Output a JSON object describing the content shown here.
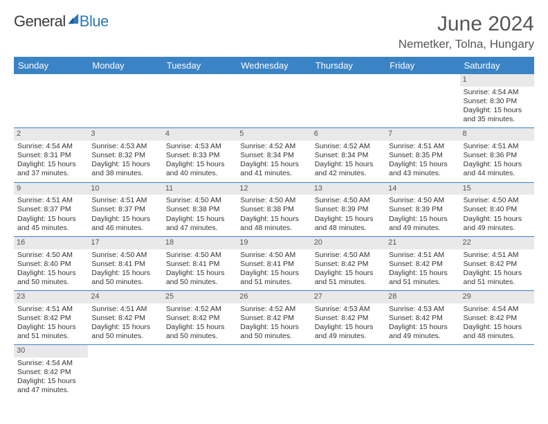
{
  "brand": {
    "general": "General",
    "blue": "Blue"
  },
  "header": {
    "month_title": "June 2024",
    "location": "Nemetker, Tolna, Hungary"
  },
  "colors": {
    "header_bg": "#3a83c5",
    "header_text": "#ffffff",
    "daynum_bg": "#e9e9e9",
    "text": "#333333",
    "brand_blue": "#2e78bd",
    "cell_border": "#3a83c5"
  },
  "weekdays": [
    "Sunday",
    "Monday",
    "Tuesday",
    "Wednesday",
    "Thursday",
    "Friday",
    "Saturday"
  ],
  "leading_blanks": 6,
  "days": [
    {
      "n": "1",
      "sunrise": "Sunrise: 4:54 AM",
      "sunset": "Sunset: 8:30 PM",
      "d1": "Daylight: 15 hours",
      "d2": "and 35 minutes."
    },
    {
      "n": "2",
      "sunrise": "Sunrise: 4:54 AM",
      "sunset": "Sunset: 8:31 PM",
      "d1": "Daylight: 15 hours",
      "d2": "and 37 minutes."
    },
    {
      "n": "3",
      "sunrise": "Sunrise: 4:53 AM",
      "sunset": "Sunset: 8:32 PM",
      "d1": "Daylight: 15 hours",
      "d2": "and 38 minutes."
    },
    {
      "n": "4",
      "sunrise": "Sunrise: 4:53 AM",
      "sunset": "Sunset: 8:33 PM",
      "d1": "Daylight: 15 hours",
      "d2": "and 40 minutes."
    },
    {
      "n": "5",
      "sunrise": "Sunrise: 4:52 AM",
      "sunset": "Sunset: 8:34 PM",
      "d1": "Daylight: 15 hours",
      "d2": "and 41 minutes."
    },
    {
      "n": "6",
      "sunrise": "Sunrise: 4:52 AM",
      "sunset": "Sunset: 8:34 PM",
      "d1": "Daylight: 15 hours",
      "d2": "and 42 minutes."
    },
    {
      "n": "7",
      "sunrise": "Sunrise: 4:51 AM",
      "sunset": "Sunset: 8:35 PM",
      "d1": "Daylight: 15 hours",
      "d2": "and 43 minutes."
    },
    {
      "n": "8",
      "sunrise": "Sunrise: 4:51 AM",
      "sunset": "Sunset: 8:36 PM",
      "d1": "Daylight: 15 hours",
      "d2": "and 44 minutes."
    },
    {
      "n": "9",
      "sunrise": "Sunrise: 4:51 AM",
      "sunset": "Sunset: 8:37 PM",
      "d1": "Daylight: 15 hours",
      "d2": "and 45 minutes."
    },
    {
      "n": "10",
      "sunrise": "Sunrise: 4:51 AM",
      "sunset": "Sunset: 8:37 PM",
      "d1": "Daylight: 15 hours",
      "d2": "and 46 minutes."
    },
    {
      "n": "11",
      "sunrise": "Sunrise: 4:50 AM",
      "sunset": "Sunset: 8:38 PM",
      "d1": "Daylight: 15 hours",
      "d2": "and 47 minutes."
    },
    {
      "n": "12",
      "sunrise": "Sunrise: 4:50 AM",
      "sunset": "Sunset: 8:38 PM",
      "d1": "Daylight: 15 hours",
      "d2": "and 48 minutes."
    },
    {
      "n": "13",
      "sunrise": "Sunrise: 4:50 AM",
      "sunset": "Sunset: 8:39 PM",
      "d1": "Daylight: 15 hours",
      "d2": "and 48 minutes."
    },
    {
      "n": "14",
      "sunrise": "Sunrise: 4:50 AM",
      "sunset": "Sunset: 8:39 PM",
      "d1": "Daylight: 15 hours",
      "d2": "and 49 minutes."
    },
    {
      "n": "15",
      "sunrise": "Sunrise: 4:50 AM",
      "sunset": "Sunset: 8:40 PM",
      "d1": "Daylight: 15 hours",
      "d2": "and 49 minutes."
    },
    {
      "n": "16",
      "sunrise": "Sunrise: 4:50 AM",
      "sunset": "Sunset: 8:40 PM",
      "d1": "Daylight: 15 hours",
      "d2": "and 50 minutes."
    },
    {
      "n": "17",
      "sunrise": "Sunrise: 4:50 AM",
      "sunset": "Sunset: 8:41 PM",
      "d1": "Daylight: 15 hours",
      "d2": "and 50 minutes."
    },
    {
      "n": "18",
      "sunrise": "Sunrise: 4:50 AM",
      "sunset": "Sunset: 8:41 PM",
      "d1": "Daylight: 15 hours",
      "d2": "and 50 minutes."
    },
    {
      "n": "19",
      "sunrise": "Sunrise: 4:50 AM",
      "sunset": "Sunset: 8:41 PM",
      "d1": "Daylight: 15 hours",
      "d2": "and 51 minutes."
    },
    {
      "n": "20",
      "sunrise": "Sunrise: 4:50 AM",
      "sunset": "Sunset: 8:42 PM",
      "d1": "Daylight: 15 hours",
      "d2": "and 51 minutes."
    },
    {
      "n": "21",
      "sunrise": "Sunrise: 4:51 AM",
      "sunset": "Sunset: 8:42 PM",
      "d1": "Daylight: 15 hours",
      "d2": "and 51 minutes."
    },
    {
      "n": "22",
      "sunrise": "Sunrise: 4:51 AM",
      "sunset": "Sunset: 8:42 PM",
      "d1": "Daylight: 15 hours",
      "d2": "and 51 minutes."
    },
    {
      "n": "23",
      "sunrise": "Sunrise: 4:51 AM",
      "sunset": "Sunset: 8:42 PM",
      "d1": "Daylight: 15 hours",
      "d2": "and 51 minutes."
    },
    {
      "n": "24",
      "sunrise": "Sunrise: 4:51 AM",
      "sunset": "Sunset: 8:42 PM",
      "d1": "Daylight: 15 hours",
      "d2": "and 50 minutes."
    },
    {
      "n": "25",
      "sunrise": "Sunrise: 4:52 AM",
      "sunset": "Sunset: 8:42 PM",
      "d1": "Daylight: 15 hours",
      "d2": "and 50 minutes."
    },
    {
      "n": "26",
      "sunrise": "Sunrise: 4:52 AM",
      "sunset": "Sunset: 8:42 PM",
      "d1": "Daylight: 15 hours",
      "d2": "and 50 minutes."
    },
    {
      "n": "27",
      "sunrise": "Sunrise: 4:53 AM",
      "sunset": "Sunset: 8:42 PM",
      "d1": "Daylight: 15 hours",
      "d2": "and 49 minutes."
    },
    {
      "n": "28",
      "sunrise": "Sunrise: 4:53 AM",
      "sunset": "Sunset: 8:42 PM",
      "d1": "Daylight: 15 hours",
      "d2": "and 49 minutes."
    },
    {
      "n": "29",
      "sunrise": "Sunrise: 4:54 AM",
      "sunset": "Sunset: 8:42 PM",
      "d1": "Daylight: 15 hours",
      "d2": "and 48 minutes."
    },
    {
      "n": "30",
      "sunrise": "Sunrise: 4:54 AM",
      "sunset": "Sunset: 8:42 PM",
      "d1": "Daylight: 15 hours",
      "d2": "and 47 minutes."
    }
  ]
}
